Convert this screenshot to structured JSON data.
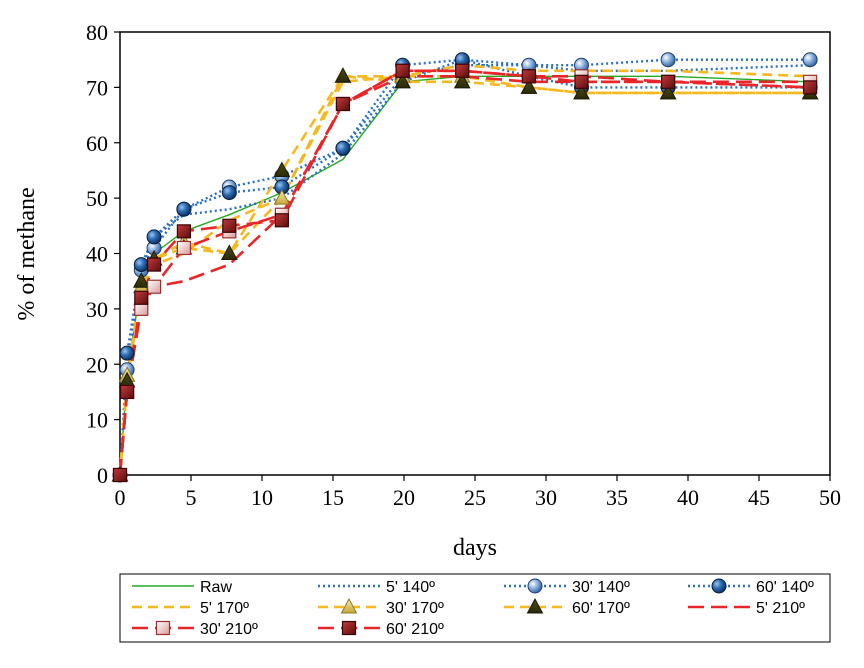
{
  "chart_data": {
    "type": "line",
    "title": "",
    "xlabel": "days",
    "ylabel": "% of methane",
    "xlim": [
      0,
      50
    ],
    "ylim": [
      0,
      80
    ],
    "x_ticks": [
      0,
      5,
      10,
      15,
      20,
      25,
      30,
      35,
      40,
      45,
      50
    ],
    "y_ticks": [
      0,
      10,
      20,
      30,
      40,
      50,
      60,
      70,
      80
    ],
    "grid": false,
    "legend_position": "bottom",
    "x": [
      0,
      0.5,
      1.5,
      2.4,
      4.5,
      7.7,
      11.4,
      15.7,
      19.9,
      24.1,
      28.8,
      32.5,
      38.6,
      48.6
    ],
    "series": [
      {
        "name": "Raw",
        "style": "solid-green",
        "color": "#22aa22",
        "marker": "none",
        "values": [
          0,
          18,
          35,
          40,
          44,
          47,
          51,
          57,
          71,
          72,
          72,
          72,
          72,
          71
        ]
      },
      {
        "name": "5' 140º",
        "style": "dotted-blue",
        "color": "#2a6fc4",
        "marker": "none",
        "values": [
          0,
          20,
          37,
          43,
          47,
          48,
          50,
          58,
          71,
          75,
          74,
          73,
          73,
          74
        ]
      },
      {
        "name": "30' 140º",
        "style": "dotted-blue",
        "color": "#2a6fc4",
        "marker": "circle-light",
        "values": [
          0,
          19,
          37,
          41,
          48,
          52,
          54,
          59,
          72,
          74,
          74,
          74,
          75,
          75
        ]
      },
      {
        "name": "60' 140º",
        "style": "dotted-blue",
        "color": "#2a6fc4",
        "marker": "circle-dark",
        "values": [
          0,
          22,
          38,
          43,
          48,
          51,
          52,
          59,
          74,
          75,
          72,
          70,
          70,
          70
        ]
      },
      {
        "name": "5' 170º",
        "style": "dashed-yellow",
        "color": "#f5b820",
        "marker": "none",
        "values": [
          0,
          17,
          33,
          38,
          40,
          46,
          50,
          71,
          72,
          74,
          73,
          73,
          73,
          72
        ]
      },
      {
        "name": "30' 170º",
        "style": "dashed-yellow",
        "color": "#f5b820",
        "marker": "triangle-light",
        "values": [
          0,
          18,
          34,
          39,
          42,
          40,
          50,
          72,
          72,
          72,
          70,
          69,
          69,
          69
        ]
      },
      {
        "name": "60' 170º",
        "style": "dashed-yellow",
        "color": "#f5b820",
        "marker": "triangle-dark",
        "values": [
          0,
          17,
          35,
          39,
          41,
          40,
          55,
          72,
          71,
          71,
          70,
          69,
          69,
          69
        ]
      },
      {
        "name": "5' 210º",
        "style": "longdash-red",
        "color": "#e8262a",
        "marker": "none",
        "values": [
          0,
          15,
          31,
          34,
          35,
          38,
          47,
          67,
          72,
          72,
          71,
          71,
          71,
          70
        ]
      },
      {
        "name": "30' 210º",
        "style": "longdash-red",
        "color": "#e8262a",
        "marker": "square-light",
        "values": [
          0,
          15,
          30,
          34,
          41,
          44,
          47,
          67,
          73,
          73,
          72,
          72,
          71,
          71
        ]
      },
      {
        "name": "60' 210º",
        "style": "longdash-red",
        "color": "#e8262a",
        "marker": "square-dark",
        "values": [
          0,
          15,
          32,
          38,
          44,
          45,
          46,
          67,
          73,
          73,
          72,
          71,
          71,
          70
        ]
      }
    ]
  }
}
